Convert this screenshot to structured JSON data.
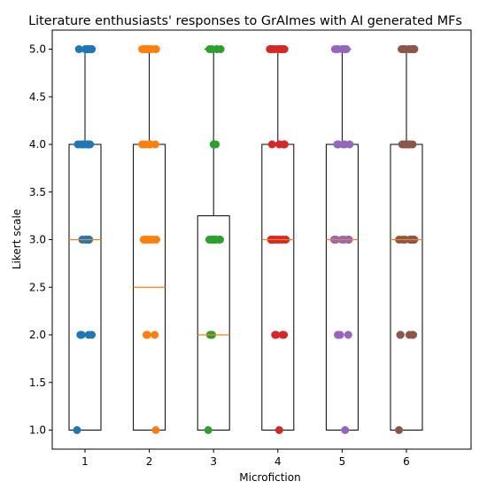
{
  "chart_data": {
    "type": "boxplot-with-jitter",
    "title": "Literature enthusiasts' responses to GrAImes with AI generated MFs",
    "xlabel": "Microfiction",
    "ylabel": "Likert scale",
    "categories": [
      "1",
      "2",
      "3",
      "4",
      "5",
      "6"
    ],
    "ylim": [
      0.8,
      5.2
    ],
    "yticks": [
      "1.0",
      "1.5",
      "2.0",
      "2.5",
      "3.0",
      "3.5",
      "4.0",
      "4.5",
      "5.0"
    ],
    "grid": false,
    "boxes": [
      {
        "category": "1",
        "min": 1,
        "q1": 1,
        "median": 3.0,
        "q3": 4,
        "max": 5
      },
      {
        "category": "2",
        "min": 1,
        "q1": 1,
        "median": 2.5,
        "q3": 4,
        "max": 5
      },
      {
        "category": "3",
        "min": 1,
        "q1": 1,
        "median": 2.0,
        "q3": 3.25,
        "max": 5
      },
      {
        "category": "4",
        "min": 1,
        "q1": 1,
        "median": 3.0,
        "q3": 4,
        "max": 5
      },
      {
        "category": "5",
        "min": 1,
        "q1": 1,
        "median": 3.0,
        "q3": 4,
        "max": 5
      },
      {
        "category": "6",
        "min": 1,
        "q1": 1,
        "median": 3.0,
        "q3": 4,
        "max": 5
      }
    ],
    "points": [
      {
        "category": "1",
        "color": "#1f77b4",
        "values": [
          1,
          2,
          2,
          2,
          2,
          3,
          3,
          3,
          3,
          3,
          3,
          4,
          4,
          4,
          4,
          4,
          4,
          4,
          4,
          4,
          5,
          5,
          5,
          5,
          5,
          5,
          5,
          5,
          5
        ]
      },
      {
        "category": "2",
        "color": "#ff7f0e",
        "values": [
          1,
          2,
          2,
          2,
          2,
          3,
          3,
          3,
          3,
          3,
          3,
          3,
          4,
          4,
          4,
          4,
          4,
          5,
          5,
          5,
          5,
          5,
          5,
          5,
          5,
          5
        ]
      },
      {
        "category": "3",
        "color": "#2ca02c",
        "values": [
          1,
          2,
          2,
          2,
          3,
          3,
          3,
          3,
          3,
          3,
          3,
          3,
          3,
          4,
          4,
          4,
          5,
          5,
          5,
          5,
          5
        ]
      },
      {
        "category": "4",
        "color": "#d62728",
        "values": [
          1,
          2,
          2,
          2,
          2,
          2,
          3,
          3,
          3,
          3,
          3,
          3,
          3,
          3,
          3,
          3,
          3,
          4,
          4,
          4,
          4,
          4,
          4,
          5,
          5,
          5,
          5,
          5,
          5,
          5,
          5,
          5,
          5,
          5
        ]
      },
      {
        "category": "5",
        "color": "#9467bd",
        "values": [
          1,
          2,
          2,
          2,
          2,
          3,
          3,
          3,
          3,
          3,
          3,
          3,
          3,
          3,
          4,
          4,
          4,
          4,
          4,
          5,
          5,
          5,
          5,
          5,
          5,
          5,
          5
        ]
      },
      {
        "category": "6",
        "color": "#8c564b",
        "values": [
          1,
          2,
          2,
          2,
          2,
          2,
          3,
          3,
          3,
          3,
          3,
          3,
          3,
          3,
          3,
          3,
          4,
          4,
          4,
          4,
          4,
          4,
          4,
          4,
          5,
          5,
          5,
          5,
          5,
          5,
          5,
          5,
          5,
          5
        ]
      }
    ],
    "colors": {
      "box": "#000000",
      "median": "#ff7f0e",
      "axes": "#000000"
    }
  }
}
